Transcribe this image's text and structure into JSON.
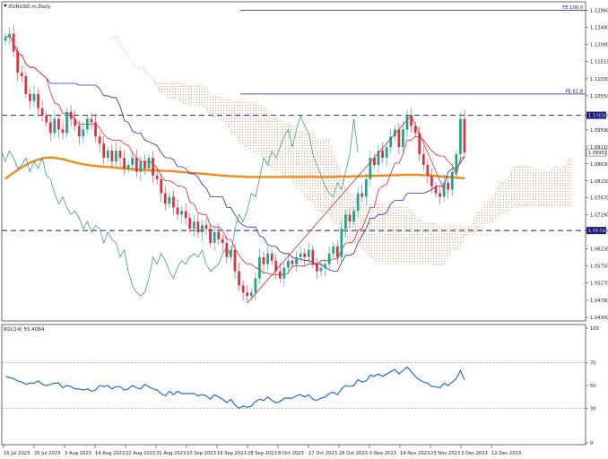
{
  "chart_data": [
    {
      "type": "line",
      "symbol_label": "EURUSD.m,Daily",
      "price_ticks": [
        "1.12960",
        "1.12480",
        "1.12000",
        "1.11515",
        "1.11030",
        "1.10550",
        "1.10000",
        "1.09590",
        "1.09110",
        "1.08630",
        "1.08150",
        "1.07670",
        "1.07190",
        "1.06750",
        "1.06230",
        "1.05750",
        "1.05270",
        "1.04780",
        "1.04300"
      ],
      "y_range": [
        1.043,
        1.131
      ],
      "x_labels": [
        "16 Jul 2023",
        "25 Jul 2023",
        "3 Aug 2023",
        "14 Aug 2023",
        "22 Aug 2023",
        "31 Aug 2023",
        "10 Sep 2023",
        "19 Sep 2023",
        "28 Sep 2023",
        "8 Oct 2023",
        "17 Oct 2023",
        "26 Oct 2023",
        "5 Nov 2023",
        "14 Nov 2023",
        "23 Nov 2023",
        "3 Dec 2023",
        "12 Dec 2023"
      ],
      "last_price": {
        "label": "1.08951",
        "value": 1.08951
      },
      "levels": [
        {
          "label": "FE 100.0",
          "value": 1.1296,
          "style": "solid",
          "color": "#1a1a8c"
        },
        {
          "label": "FE 61.8",
          "value": 1.106,
          "style": "solid",
          "color": "#1a1a8c"
        },
        {
          "label": "1.10000",
          "value": 1.1,
          "style": "dashed",
          "color": "#1a1a8c"
        },
        {
          "label": "1.06750",
          "value": 1.0675,
          "style": "dashed",
          "color": "#1a1a8c"
        }
      ],
      "close": [
        1.122,
        1.123,
        1.118,
        1.112,
        1.111,
        1.106,
        1.104,
        1.106,
        1.102,
        1.1,
        1.098,
        1.095,
        1.099,
        1.096,
        1.095,
        1.101,
        1.099,
        1.097,
        1.094,
        1.096,
        1.099,
        1.098,
        1.094,
        1.092,
        1.088,
        1.09,
        1.087,
        1.09,
        1.088,
        1.085,
        1.086,
        1.088,
        1.084,
        1.087,
        1.085,
        1.088,
        1.083,
        1.082,
        1.078,
        1.075,
        1.077,
        1.074,
        1.072,
        1.073,
        1.071,
        1.068,
        1.07,
        1.067,
        1.069,
        1.068,
        1.064,
        1.067,
        1.065,
        1.064,
        1.06,
        1.062,
        1.056,
        1.052,
        1.05,
        1.049,
        1.05,
        1.054,
        1.06,
        1.058,
        1.061,
        1.059,
        1.056,
        1.054,
        1.057,
        1.059,
        1.058,
        1.06,
        1.061,
        1.06,
        1.062,
        1.058,
        1.056,
        1.057,
        1.058,
        1.061,
        1.063,
        1.06,
        1.068,
        1.072,
        1.07,
        1.073,
        1.078,
        1.077,
        1.082,
        1.088,
        1.086,
        1.09,
        1.088,
        1.091,
        1.094,
        1.096,
        1.091,
        1.096,
        1.1,
        1.097,
        1.095,
        1.089,
        1.086,
        1.083,
        1.08,
        1.078,
        1.077,
        1.081,
        1.079,
        1.084,
        1.089,
        1.099,
        1.0895
      ],
      "ma200": [
        1.082,
        1.083,
        1.0838,
        1.0846,
        1.0853,
        1.086,
        1.0866,
        1.0871,
        1.0875,
        1.0878,
        1.088,
        1.0881,
        1.088,
        1.0878,
        1.0876,
        1.0873,
        1.087,
        1.0867,
        1.0864,
        1.0862,
        1.086,
        1.0858,
        1.0857,
        1.0856,
        1.0855,
        1.0854,
        1.0853,
        1.0852,
        1.0851,
        1.085,
        1.0849,
        1.0848,
        1.0847,
        1.0846,
        1.0846,
        1.0845,
        1.0845,
        1.0844,
        1.0844,
        1.0843,
        1.0843,
        1.0842,
        1.0841,
        1.084,
        1.0839,
        1.0838,
        1.0837,
        1.0836,
        1.0835,
        1.0834,
        1.0833,
        1.0832,
        1.0831,
        1.083,
        1.0829,
        1.0828,
        1.0828,
        1.0827,
        1.0827,
        1.0826,
        1.0826,
        1.0826,
        1.0826,
        1.0826,
        1.0826,
        1.0826,
        1.0826,
        1.0826,
        1.0826,
        1.0826,
        1.0826,
        1.0826,
        1.0826,
        1.0826,
        1.0826,
        1.0826,
        1.0826,
        1.0826,
        1.0826,
        1.0826,
        1.0826,
        1.0827,
        1.0827,
        1.0827,
        1.0827,
        1.0828,
        1.0828,
        1.0828,
        1.0829,
        1.0829,
        1.0829,
        1.083,
        1.083,
        1.083,
        1.0831,
        1.0831,
        1.0831,
        1.0832,
        1.0832,
        1.0832,
        1.0832,
        1.0832,
        1.0831,
        1.0831,
        1.083,
        1.0829,
        1.0828,
        1.0827,
        1.0826,
        1.0825,
        1.0824,
        1.0823,
        1.0822
      ],
      "colors": {
        "bull": "#1aa68a",
        "bear": "#e0303c",
        "ma": "#f08a18",
        "tenkan": "#e02a2a",
        "kijun": "#2828c8",
        "chikou": "#3a9e8e",
        "cloud": "#f0a070"
      }
    },
    {
      "type": "line",
      "indicator_label": "RSI(24) 55.4084",
      "y_range": [
        0,
        100
      ],
      "y_ticks": [
        "100",
        "70",
        "50",
        "30",
        "0"
      ],
      "levels": [
        70,
        30
      ],
      "values": [
        58,
        57,
        56,
        54,
        53,
        51,
        52,
        52,
        54,
        51,
        50,
        51,
        52,
        52,
        48,
        50,
        49,
        47,
        47,
        46,
        47,
        45,
        46,
        50,
        49,
        50,
        47,
        49,
        49,
        46,
        47,
        50,
        48,
        47,
        51,
        49,
        47,
        46,
        43,
        41,
        45,
        42,
        45,
        43,
        43,
        43,
        43,
        41,
        42,
        41,
        38,
        42,
        40,
        38,
        35,
        38,
        33,
        30,
        32,
        31,
        32,
        36,
        38,
        37,
        40,
        37,
        35,
        36,
        39,
        39,
        39,
        41,
        42,
        40,
        42,
        38,
        37,
        39,
        40,
        43,
        44,
        42,
        47,
        50,
        49,
        50,
        55,
        53,
        54,
        59,
        58,
        60,
        58,
        60,
        62,
        64,
        60,
        63,
        66,
        62,
        58,
        55,
        53,
        52,
        49,
        49,
        48,
        52,
        50,
        53,
        56,
        63,
        55
      ]
    }
  ]
}
